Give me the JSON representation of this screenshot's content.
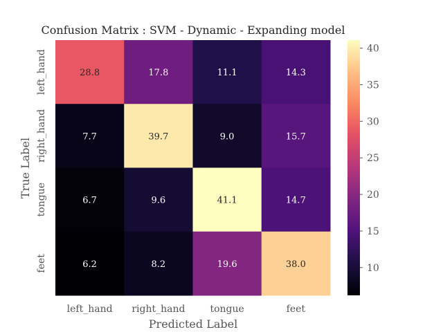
{
  "chart_data": {
    "type": "heatmap",
    "title": "Confusion Matrix : SVM - Dynamic - Expanding model",
    "xlabel": "Predicted Label",
    "ylabel": "True Label",
    "x_categories": [
      "left_hand",
      "right_hand",
      "tongue",
      "feet"
    ],
    "y_categories": [
      "left_hand",
      "right_hand",
      "tongue",
      "feet"
    ],
    "values": [
      [
        28.8,
        17.8,
        11.1,
        14.3
      ],
      [
        7.7,
        39.7,
        9.0,
        15.7
      ],
      [
        6.7,
        9.6,
        41.1,
        14.7
      ],
      [
        6.2,
        8.2,
        19.6,
        38.0
      ]
    ],
    "colormap": "magma",
    "vmin": 6.2,
    "vmax": 41.1,
    "colorbar_ticks": [
      10,
      15,
      20,
      25,
      30,
      35,
      40
    ]
  }
}
